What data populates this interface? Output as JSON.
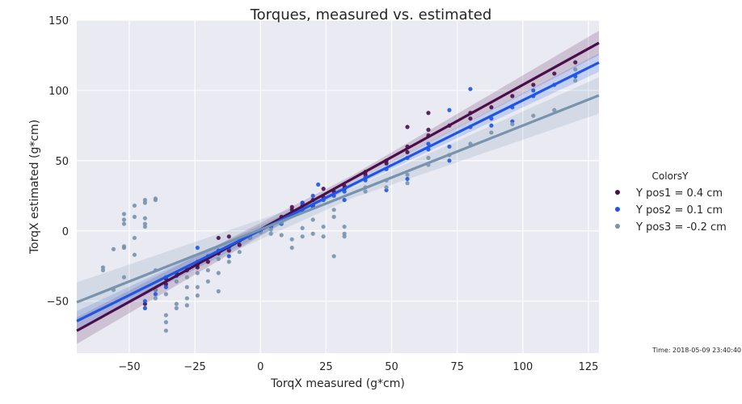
{
  "chart_data": {
    "type": "scatter",
    "title": "Torques, measured vs. estimated",
    "xlabel": "TorqX measured (g*cm)",
    "ylabel": "TorqX estimated (g*cm)",
    "xlim": [
      -70,
      129
    ],
    "ylim": [
      -87,
      150
    ],
    "xticks": [
      -50,
      -25,
      0,
      25,
      50,
      75,
      100,
      125
    ],
    "yticks": [
      -50,
      0,
      50,
      100,
      150
    ],
    "xtick_labels": [
      "−50",
      "−25",
      "0",
      "25",
      "50",
      "75",
      "100",
      "125"
    ],
    "ytick_labels": [
      "−50",
      "0",
      "50",
      "100",
      "150"
    ],
    "grid": true,
    "background": "#eaeaf2",
    "legend": {
      "title": "ColorsY",
      "placement": "right"
    },
    "footnote": "Time: 2018-05-09 23:40:40",
    "series": [
      {
        "name": "Y pos1 = 0.4 cm",
        "color": "#4a0f4a",
        "fit": {
          "slope": 1.03,
          "intercept": 1.0,
          "ci": 4
        },
        "points": [
          [
            -44,
            -52
          ],
          [
            -40,
            -42
          ],
          [
            -36,
            -38
          ],
          [
            -36,
            -34
          ],
          [
            -32,
            -30
          ],
          [
            -28,
            -28
          ],
          [
            -24,
            -26
          ],
          [
            -24,
            -24
          ],
          [
            -20,
            -22
          ],
          [
            -16,
            -16
          ],
          [
            -16,
            -5
          ],
          [
            -12,
            -4
          ],
          [
            -12,
            -14
          ],
          [
            -8,
            -10
          ],
          [
            -4,
            -5
          ],
          [
            0,
            0
          ],
          [
            4,
            4
          ],
          [
            8,
            8
          ],
          [
            8,
            10
          ],
          [
            12,
            15
          ],
          [
            12,
            17
          ],
          [
            12,
            12
          ],
          [
            16,
            18
          ],
          [
            16,
            20
          ],
          [
            20,
            22
          ],
          [
            20,
            18
          ],
          [
            24,
            30
          ],
          [
            24,
            24
          ],
          [
            28,
            28
          ],
          [
            32,
            32
          ],
          [
            32,
            30
          ],
          [
            40,
            40
          ],
          [
            40,
            42
          ],
          [
            48,
            48
          ],
          [
            48,
            50
          ],
          [
            56,
            56
          ],
          [
            56,
            74
          ],
          [
            56,
            60
          ],
          [
            64,
            68
          ],
          [
            64,
            72
          ],
          [
            64,
            84
          ],
          [
            72,
            75
          ],
          [
            80,
            80
          ],
          [
            80,
            84
          ],
          [
            88,
            88
          ],
          [
            96,
            96
          ],
          [
            104,
            104
          ],
          [
            112,
            112
          ],
          [
            120,
            120
          ]
        ]
      },
      {
        "name": "Y pos2 = 0.1 cm",
        "color": "#1e55e6",
        "fit": {
          "slope": 0.925,
          "intercept": 0.5,
          "ci": 3
        },
        "points": [
          [
            -44,
            -50
          ],
          [
            -44,
            -55
          ],
          [
            -40,
            -45
          ],
          [
            -36,
            -40
          ],
          [
            -36,
            -33
          ],
          [
            -32,
            -32
          ],
          [
            -28,
            -27
          ],
          [
            -24,
            -22
          ],
          [
            -24,
            -12
          ],
          [
            -20,
            -18
          ],
          [
            -16,
            -14
          ],
          [
            -12,
            -12
          ],
          [
            -12,
            -18
          ],
          [
            -8,
            -7
          ],
          [
            -4,
            -4
          ],
          [
            0,
            0
          ],
          [
            4,
            3
          ],
          [
            8,
            7
          ],
          [
            8,
            5
          ],
          [
            12,
            11
          ],
          [
            16,
            14
          ],
          [
            16,
            20
          ],
          [
            20,
            17
          ],
          [
            20,
            25
          ],
          [
            22,
            33
          ],
          [
            24,
            22
          ],
          [
            28,
            25
          ],
          [
            32,
            28
          ],
          [
            32,
            22
          ],
          [
            40,
            36
          ],
          [
            40,
            38
          ],
          [
            48,
            29
          ],
          [
            48,
            44
          ],
          [
            56,
            52
          ],
          [
            56,
            37
          ],
          [
            64,
            58
          ],
          [
            64,
            62
          ],
          [
            72,
            60
          ],
          [
            72,
            86
          ],
          [
            72,
            50
          ],
          [
            80,
            74
          ],
          [
            80,
            101
          ],
          [
            88,
            80
          ],
          [
            88,
            75
          ],
          [
            96,
            88
          ],
          [
            96,
            78
          ],
          [
            104,
            96
          ],
          [
            104,
            100
          ],
          [
            112,
            104
          ],
          [
            120,
            110
          ]
        ]
      },
      {
        "name": "Y pos3 = -0.2 cm",
        "color": "#7793ad",
        "fit": {
          "slope": 0.74,
          "intercept": 1.0,
          "ci": 6
        },
        "points": [
          [
            -60,
            -28
          ],
          [
            -60,
            -26
          ],
          [
            -56,
            -13
          ],
          [
            -56,
            -42
          ],
          [
            -52,
            -33
          ],
          [
            -52,
            -12
          ],
          [
            -52,
            -11
          ],
          [
            -52,
            5
          ],
          [
            -52,
            8
          ],
          [
            -52,
            12
          ],
          [
            -48,
            -5
          ],
          [
            -48,
            -17
          ],
          [
            -48,
            10
          ],
          [
            -48,
            18
          ],
          [
            -44,
            3
          ],
          [
            -44,
            5
          ],
          [
            -44,
            9
          ],
          [
            -44,
            20
          ],
          [
            -44,
            22
          ],
          [
            -40,
            -28
          ],
          [
            -40,
            -42
          ],
          [
            -40,
            -48
          ],
          [
            -40,
            22
          ],
          [
            -40,
            23
          ],
          [
            -36,
            -60
          ],
          [
            -36,
            -65
          ],
          [
            -36,
            -71
          ],
          [
            -36,
            -45
          ],
          [
            -32,
            -55
          ],
          [
            -32,
            -52
          ],
          [
            -32,
            -36
          ],
          [
            -28,
            -53
          ],
          [
            -28,
            -48
          ],
          [
            -28,
            -40
          ],
          [
            -28,
            -33
          ],
          [
            -24,
            -46
          ],
          [
            -24,
            -40
          ],
          [
            -24,
            -30
          ],
          [
            -20,
            -36
          ],
          [
            -20,
            -28
          ],
          [
            -16,
            -43
          ],
          [
            -16,
            -30
          ],
          [
            -16,
            -20
          ],
          [
            -12,
            -22
          ],
          [
            -8,
            -15
          ],
          [
            -4,
            -5
          ],
          [
            0,
            -1
          ],
          [
            4,
            1
          ],
          [
            4,
            -2
          ],
          [
            8,
            -3
          ],
          [
            8,
            6
          ],
          [
            12,
            -12
          ],
          [
            12,
            -6
          ],
          [
            16,
            -4
          ],
          [
            16,
            2
          ],
          [
            20,
            -2
          ],
          [
            20,
            8
          ],
          [
            24,
            -4
          ],
          [
            24,
            3
          ],
          [
            28,
            -18
          ],
          [
            28,
            10
          ],
          [
            28,
            15
          ],
          [
            32,
            -2
          ],
          [
            32,
            -4
          ],
          [
            32,
            3
          ],
          [
            40,
            28
          ],
          [
            40,
            31
          ],
          [
            48,
            31
          ],
          [
            48,
            36
          ],
          [
            56,
            34
          ],
          [
            56,
            40
          ],
          [
            64,
            47
          ],
          [
            64,
            52
          ],
          [
            72,
            54
          ],
          [
            80,
            62
          ],
          [
            88,
            70
          ],
          [
            96,
            76
          ],
          [
            104,
            82
          ],
          [
            112,
            86
          ],
          [
            120,
            107
          ],
          [
            120,
            115
          ]
        ]
      }
    ]
  }
}
